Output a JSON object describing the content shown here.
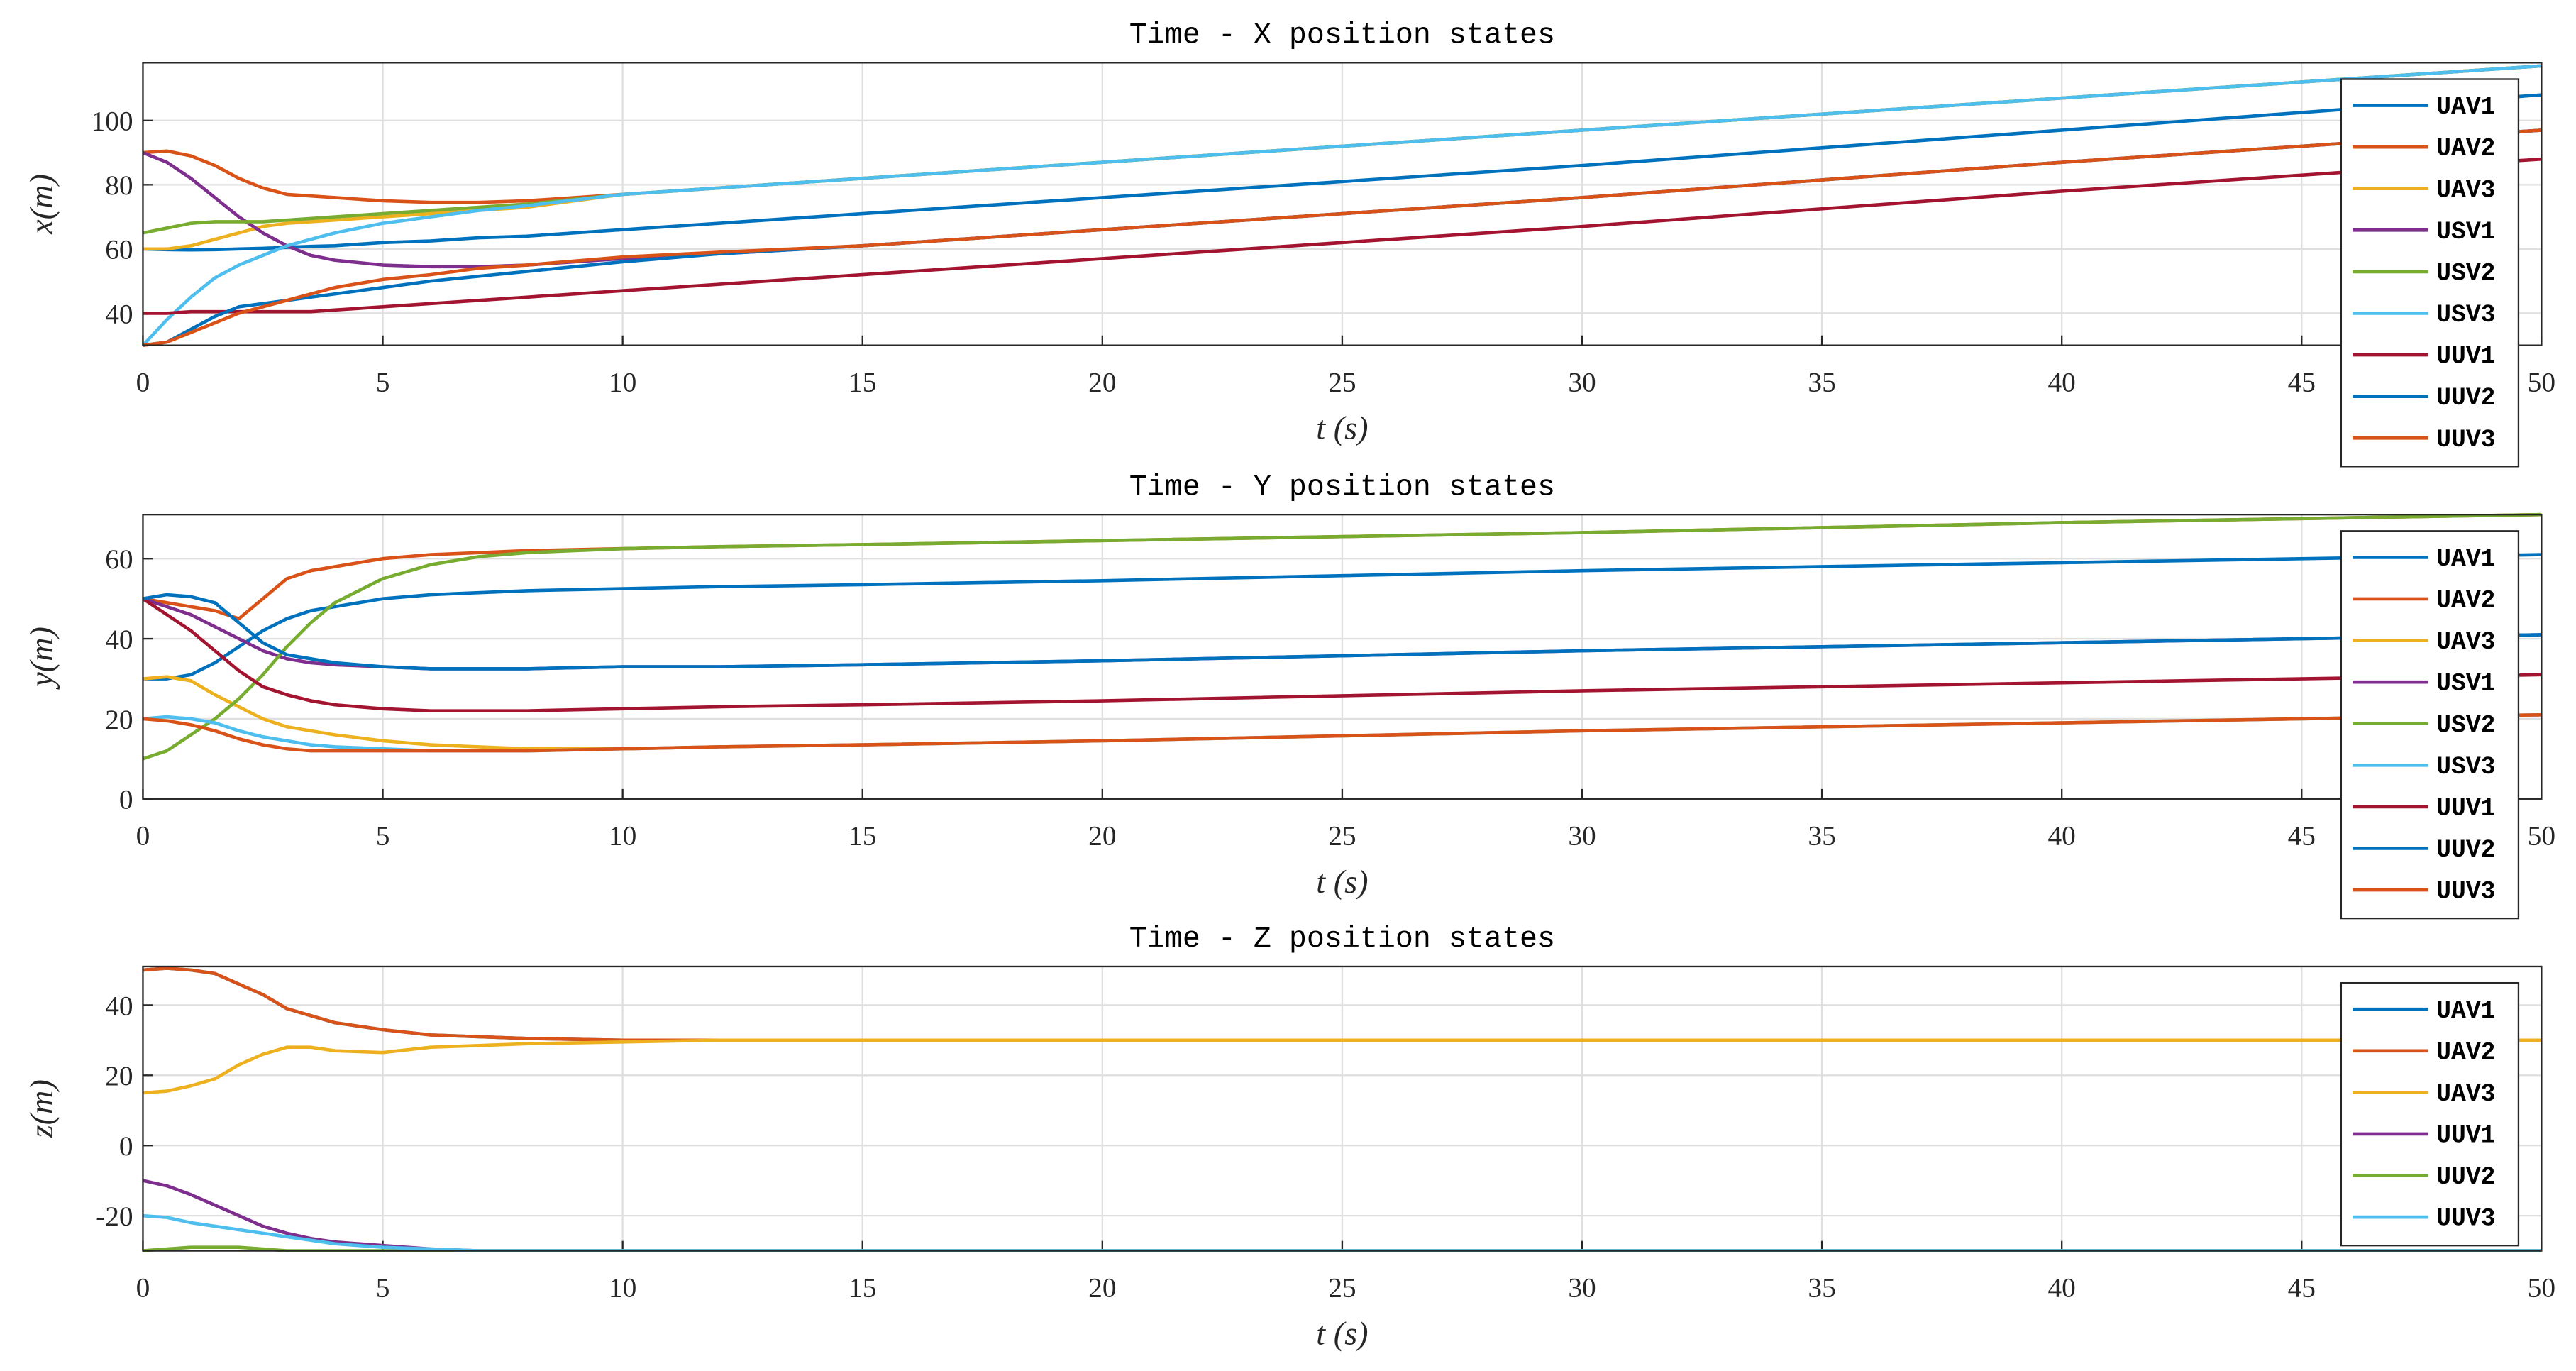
{
  "chart_data": [
    {
      "type": "line",
      "title": "Time - X position states",
      "xlabel": "t (s)",
      "ylabel": "x(m)",
      "grid": true,
      "legend": "upper right",
      "x": [
        0,
        0.5,
        1,
        1.5,
        2,
        2.5,
        3,
        3.5,
        4,
        5,
        6,
        7,
        8,
        10,
        12,
        15,
        20,
        30,
        40,
        50
      ],
      "xlim": [
        0,
        50
      ],
      "xticks": [
        0,
        5,
        10,
        15,
        20,
        25,
        30,
        35,
        40,
        45,
        50
      ],
      "ylim": [
        30,
        118
      ],
      "yticks": [
        40,
        60,
        80,
        100
      ],
      "series": [
        {
          "name": "UAV1",
          "color": "#0072BD",
          "values": [
            60,
            59.8,
            59.7,
            59.8,
            60,
            60.2,
            60.5,
            60.8,
            61,
            62,
            62.5,
            63.5,
            64,
            66,
            68,
            71,
            76,
            86,
            97,
            108
          ]
        },
        {
          "name": "UAV2",
          "color": "#D95319",
          "values": [
            90,
            90.5,
            89,
            86,
            82,
            79,
            77,
            76.5,
            76,
            75,
            74.5,
            74.5,
            75,
            77,
            79,
            82,
            87,
            97,
            107,
            117
          ]
        },
        {
          "name": "UAV3",
          "color": "#EDB120",
          "values": [
            60,
            60,
            61,
            63,
            65,
            67,
            68,
            68.5,
            69,
            70,
            71,
            72,
            73,
            77,
            79,
            82,
            87,
            97,
            107,
            117
          ]
        },
        {
          "name": "USV1",
          "color": "#7E2F8E",
          "values": [
            90,
            87,
            82,
            76,
            70,
            65,
            61,
            58,
            56.5,
            55,
            54.5,
            54.5,
            55,
            57,
            58.5,
            61,
            66,
            76,
            87,
            97
          ]
        },
        {
          "name": "USV2",
          "color": "#77AC30",
          "values": [
            65,
            66.5,
            68,
            68.5,
            68.5,
            68.5,
            69,
            69.5,
            70,
            71,
            72,
            73,
            74,
            77,
            79,
            82,
            87,
            97,
            107,
            117
          ]
        },
        {
          "name": "USV3",
          "color": "#4DBEEE",
          "values": [
            30,
            38,
            45,
            51,
            55,
            58,
            61,
            63,
            65,
            68,
            70,
            72,
            73.5,
            77,
            79,
            82,
            87,
            97,
            107,
            117
          ]
        },
        {
          "name": "UUV1",
          "color": "#A2142F",
          "values": [
            40,
            40,
            40.5,
            40.5,
            40.5,
            40.5,
            40.5,
            40.5,
            41,
            42,
            43,
            44,
            45,
            47,
            49,
            52,
            57,
            67,
            78,
            88
          ]
        },
        {
          "name": "UUV2",
          "color": "#0072BD",
          "values": [
            30,
            31,
            35,
            39,
            42,
            43,
            44,
            45,
            46,
            48,
            50,
            51.5,
            53,
            56,
            58.5,
            61,
            66,
            76,
            87,
            97
          ]
        },
        {
          "name": "UUV3",
          "color": "#D95319",
          "values": [
            30,
            31,
            34,
            37,
            40,
            42,
            44,
            46,
            48,
            50.5,
            52,
            54,
            55,
            57.5,
            59,
            61,
            66,
            76,
            87,
            97
          ]
        }
      ]
    },
    {
      "type": "line",
      "title": "Time - Y position states",
      "xlabel": "t (s)",
      "ylabel": "y(m)",
      "grid": true,
      "legend": "upper right",
      "x": [
        0,
        0.5,
        1,
        1.5,
        2,
        2.5,
        3,
        3.5,
        4,
        5,
        6,
        7,
        8,
        10,
        12,
        15,
        20,
        30,
        40,
        50
      ],
      "xlim": [
        0,
        50
      ],
      "xticks": [
        0,
        5,
        10,
        15,
        20,
        25,
        30,
        35,
        40,
        45,
        50
      ],
      "ylim": [
        0,
        71
      ],
      "yticks": [
        0,
        20,
        40,
        60
      ],
      "series": [
        {
          "name": "UAV1",
          "color": "#0072BD",
          "values": [
            30,
            30,
            31,
            34,
            38,
            42,
            45,
            47,
            48,
            50,
            51,
            51.5,
            52,
            52.5,
            53,
            53.5,
            54.5,
            57,
            59,
            61
          ]
        },
        {
          "name": "UAV2",
          "color": "#D95319",
          "values": [
            50,
            49,
            48,
            47,
            45,
            50,
            55,
            57,
            58,
            60,
            61,
            61.5,
            62,
            62.5,
            63,
            63.5,
            64.5,
            66.5,
            69,
            71
          ]
        },
        {
          "name": "UAV3",
          "color": "#EDB120",
          "values": [
            30,
            30.5,
            29.5,
            26,
            23,
            20,
            18,
            17,
            16,
            14.5,
            13.5,
            13,
            12.5,
            12.5,
            13,
            13.5,
            14.5,
            17,
            19,
            21
          ]
        },
        {
          "name": "USV1",
          "color": "#7E2F8E",
          "values": [
            50,
            48,
            46,
            43,
            40,
            37,
            35,
            34,
            33.5,
            33,
            32.5,
            32.5,
            32.5,
            33,
            33,
            33.5,
            34.5,
            37,
            39,
            41
          ]
        },
        {
          "name": "USV2",
          "color": "#77AC30",
          "values": [
            10,
            12,
            16,
            20,
            25,
            31,
            38,
            44,
            49,
            55,
            58.5,
            60.5,
            61.5,
            62.5,
            63,
            63.5,
            64.5,
            66.5,
            69,
            71
          ]
        },
        {
          "name": "USV3",
          "color": "#4DBEEE",
          "values": [
            20,
            20.5,
            20,
            19,
            17,
            15.5,
            14.5,
            13.5,
            13,
            12.5,
            12,
            12,
            12,
            12.5,
            13,
            13.5,
            14.5,
            17,
            19,
            21
          ]
        },
        {
          "name": "UUV1",
          "color": "#A2142F",
          "values": [
            50,
            46,
            42,
            37,
            32,
            28,
            26,
            24.5,
            23.5,
            22.5,
            22,
            22,
            22,
            22.5,
            23,
            23.5,
            24.5,
            27,
            29,
            31
          ]
        },
        {
          "name": "UUV2",
          "color": "#0072BD",
          "values": [
            50,
            51,
            50.5,
            49,
            44,
            39,
            36,
            35,
            34,
            33,
            32.5,
            32.5,
            32.5,
            33,
            33,
            33.5,
            34.5,
            37,
            39,
            41
          ]
        },
        {
          "name": "UUV3",
          "color": "#D95319",
          "values": [
            20,
            19.5,
            18.5,
            17,
            15,
            13.5,
            12.5,
            12,
            12,
            12,
            12,
            12,
            12,
            12.5,
            13,
            13.5,
            14.5,
            17,
            19,
            21
          ]
        }
      ]
    },
    {
      "type": "line",
      "title": "Time - Z position states",
      "xlabel": "t (s)",
      "ylabel": "z(m)",
      "grid": true,
      "legend": "upper right",
      "x": [
        0,
        0.5,
        1,
        1.5,
        2,
        2.5,
        3,
        3.5,
        4,
        5,
        6,
        7,
        8,
        10,
        12,
        15,
        20,
        30,
        40,
        50
      ],
      "xlim": [
        0,
        50
      ],
      "xticks": [
        0,
        5,
        10,
        15,
        20,
        25,
        30,
        35,
        40,
        45,
        50
      ],
      "ylim": [
        -30,
        51
      ],
      "yticks": [
        -20,
        0,
        20,
        40
      ],
      "series": [
        {
          "name": "UAV1",
          "color": "#0072BD",
          "values": [
            50,
            50.5,
            50,
            49,
            46,
            43,
            39,
            37,
            35,
            33,
            31.5,
            31,
            30.5,
            30,
            30,
            30,
            30,
            30,
            30,
            30
          ]
        },
        {
          "name": "UAV2",
          "color": "#D95319",
          "values": [
            50,
            50.5,
            50,
            49,
            46,
            43,
            39,
            37,
            35,
            33,
            31.5,
            31,
            30.5,
            30,
            30,
            30,
            30,
            30,
            30,
            30
          ]
        },
        {
          "name": "UAV3",
          "color": "#EDB120",
          "values": [
            15,
            15.5,
            17,
            19,
            23,
            26,
            28,
            28,
            27,
            26.5,
            28,
            28.5,
            29,
            29.5,
            30,
            30,
            30,
            30,
            30,
            30
          ]
        },
        {
          "name": "UUV1",
          "color": "#7E2F8E",
          "values": [
            -10,
            -11.5,
            -14,
            -17,
            -20,
            -23,
            -25,
            -26.5,
            -27.5,
            -28.5,
            -29.5,
            -30,
            -30,
            -30,
            -30,
            -30,
            -30,
            -30,
            -30,
            -30
          ]
        },
        {
          "name": "UUV2",
          "color": "#77AC30",
          "values": [
            -30,
            -29.5,
            -29,
            -29,
            -29,
            -29.5,
            -30,
            -30,
            -30,
            -30,
            -30,
            -30,
            -30,
            -30,
            -30,
            -30,
            -30,
            -30,
            -30,
            -30
          ]
        },
        {
          "name": "UUV3",
          "color": "#4DBEEE",
          "values": [
            -20,
            -20.5,
            -22,
            -23,
            -24,
            -25,
            -26,
            -27,
            -28,
            -29,
            -29.5,
            -30,
            -30,
            -30,
            -30,
            -30,
            -30,
            -30,
            -30,
            -30
          ]
        }
      ]
    }
  ]
}
